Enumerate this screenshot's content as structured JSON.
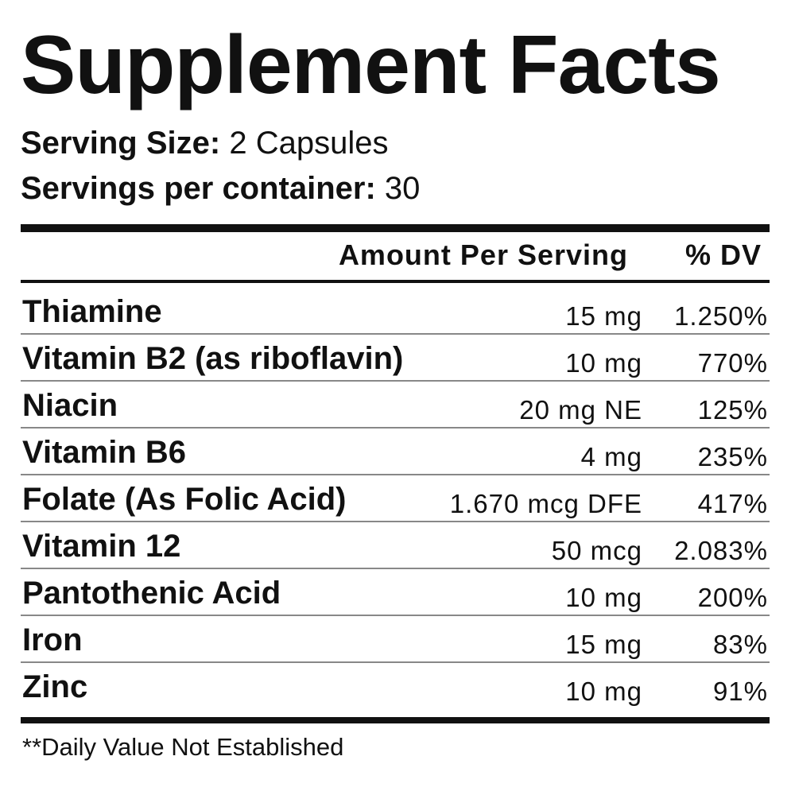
{
  "header": {
    "title": "Supplement Facts",
    "serving_size": {
      "label": "Serving Size:",
      "value": "2 Capsules"
    },
    "servings_per_container": {
      "label": "Servings per container:",
      "value": "30"
    }
  },
  "table": {
    "columns": [
      "Amount Per Serving",
      "% DV"
    ],
    "rows": [
      [
        "Thiamine",
        "15 mg",
        "1.250%"
      ],
      [
        "Vitamin B2 (as riboflavin)",
        "10 mg",
        "770%"
      ],
      [
        "Niacin",
        "20 mg NE",
        "125%"
      ],
      [
        "Vitamin B6",
        "4 mg",
        "235%"
      ],
      [
        "Folate (As Folic Acid)",
        "1.670 mcg DFE",
        "417%"
      ],
      [
        "Vitamin 12",
        "50 mcg",
        "2.083%"
      ],
      [
        "Pantothenic Acid",
        "10 mg",
        "200%"
      ],
      [
        "Iron",
        "15 mg",
        "83%"
      ],
      [
        "Zinc",
        "10 mg",
        "91%"
      ]
    ]
  },
  "footnote": "**Daily Value Not Established"
}
